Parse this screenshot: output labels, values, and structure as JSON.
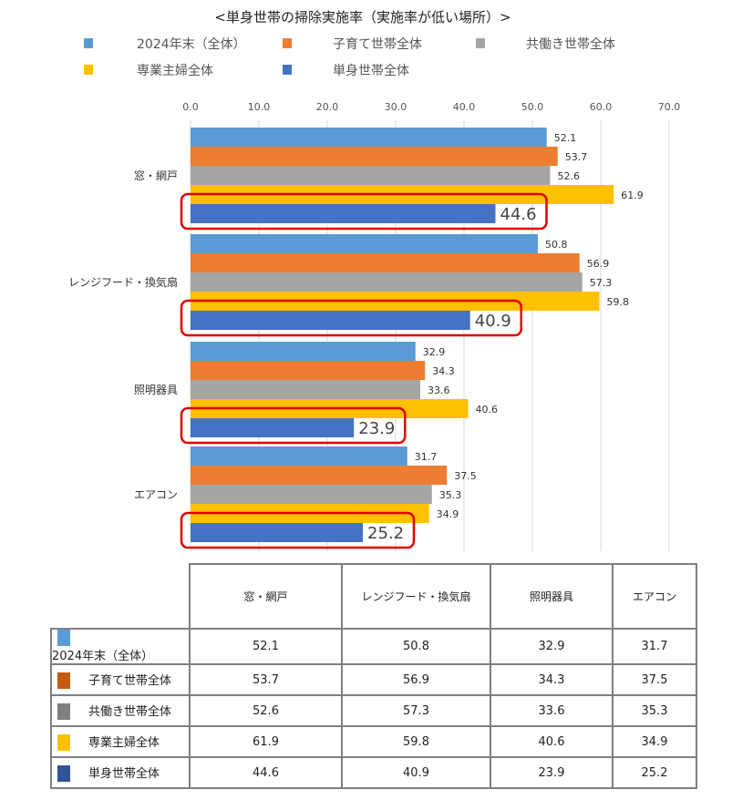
{
  "chart_data": {
    "type": "bar",
    "orientation": "horizontal",
    "title": "<単身世帯の掃除実施率（実施率が低い場所）>",
    "categories": [
      "窓・網戸",
      "レンジフード・換気扇",
      "照明器具",
      "エアコン"
    ],
    "series": [
      {
        "name": "2024年末（全体）",
        "color": "#5B9BD5",
        "table_color": "#5B9BD5",
        "values": [
          52.1,
          50.8,
          32.9,
          31.7
        ]
      },
      {
        "name": "子育て世帯全体",
        "color": "#ED7D31",
        "table_color": "#C55A11",
        "values": [
          53.7,
          56.9,
          34.3,
          37.5
        ]
      },
      {
        "name": "共働き世帯全体",
        "color": "#A5A5A5",
        "table_color": "#7F7F7F",
        "values": [
          52.6,
          57.3,
          33.6,
          35.3
        ]
      },
      {
        "name": "専業主婦全体",
        "color": "#FFC000",
        "table_color": "#FFC000",
        "values": [
          61.9,
          59.8,
          40.6,
          34.9
        ]
      },
      {
        "name": "単身世帯全体",
        "color": "#4472C4",
        "table_color": "#2F5597",
        "values": [
          44.6,
          40.9,
          23.9,
          25.2
        ],
        "highlighted": true
      }
    ],
    "xlim": [
      0,
      70
    ],
    "x_ticks": [
      "0.0",
      "10.0",
      "20.0",
      "30.0",
      "40.0",
      "50.0",
      "60.0",
      "70.0"
    ],
    "grid": true,
    "legend_position": "top",
    "highlight_color": "#E00000",
    "data_table": true
  }
}
